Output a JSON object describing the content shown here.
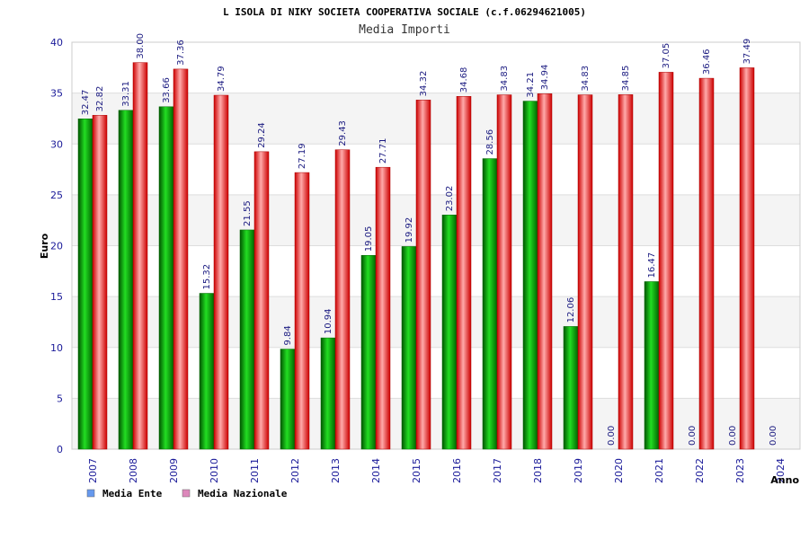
{
  "chart_data": {
    "type": "bar",
    "title": "L ISOLA DI NIKY SOCIETA COOPERATIVA SOCIALE (c.f.06294621005)",
    "subtitle": "Media Importi",
    "xlabel": "Anno",
    "ylabel": "Euro",
    "ylim": [
      0,
      40
    ],
    "yticks": [
      0,
      5,
      10,
      15,
      20,
      25,
      30,
      35,
      40
    ],
    "grid": true,
    "legend_position": "bottom-left",
    "categories": [
      "2007",
      "2008",
      "2009",
      "2010",
      "2011",
      "2012",
      "2013",
      "2014",
      "2015",
      "2016",
      "2017",
      "2018",
      "2019",
      "2020",
      "2021",
      "2022",
      "2023",
      "2024"
    ],
    "series": [
      {
        "name": "Media Ente",
        "color": "#00aa00",
        "legend_color": "#6699ee",
        "values": [
          32.47,
          33.31,
          33.66,
          15.32,
          21.55,
          9.84,
          10.94,
          19.05,
          19.92,
          23.02,
          28.56,
          34.21,
          12.06,
          0,
          16.47,
          0,
          0,
          0
        ],
        "labels": [
          "32.47",
          "33.31",
          "33.66",
          "15.32",
          "21.55",
          "9.84",
          "10.94",
          "19.05",
          "19.92",
          "23.02",
          "28.56",
          "34.21",
          "12.06",
          "0.00",
          "16.47",
          "0.00",
          "0.00",
          "0.00"
        ]
      },
      {
        "name": "Media Nazionale",
        "color": "#dd1111",
        "legend_color": "#dd88bb",
        "values": [
          32.82,
          38.0,
          37.36,
          34.79,
          29.24,
          27.19,
          29.43,
          27.71,
          34.32,
          34.68,
          34.83,
          34.94,
          34.83,
          34.85,
          37.05,
          36.46,
          37.49,
          null
        ],
        "labels": [
          "32.82",
          "38.00",
          "37.36",
          "34.79",
          "29.24",
          "27.19",
          "29.43",
          "27.71",
          "34.32",
          "34.68",
          "34.83",
          "34.94",
          "34.83",
          "34.85",
          "37.05",
          "36.46",
          "37.49",
          ""
        ]
      }
    ]
  }
}
